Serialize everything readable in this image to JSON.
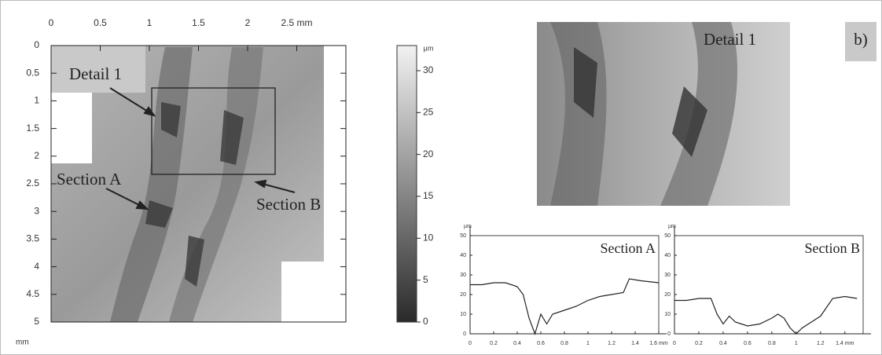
{
  "chart_data": [
    {
      "type": "heightmap",
      "xlim": [
        0,
        3
      ],
      "ylim": [
        0,
        5
      ],
      "xticks": [
        0,
        0.5,
        1,
        1.5,
        2,
        {
          "value": 2.5,
          "label": "2.5 mm"
        }
      ],
      "yticks": [
        0,
        0.5,
        1,
        1.5,
        2,
        2.5,
        3,
        3.5,
        4,
        4.5,
        5
      ],
      "ylabel": "mm",
      "clabel": "µm",
      "clim": [
        0,
        33
      ],
      "cticks": [
        0,
        5,
        10,
        15,
        20,
        25,
        30
      ],
      "annotations": [
        "Detail 1",
        "Section A",
        "Section B"
      ],
      "detail_title": "Detail 1",
      "panel_label": "b)"
    },
    {
      "type": "line",
      "title": "Section A",
      "ylabel": "µm",
      "color": "#222",
      "x": [
        0,
        0.1,
        0.2,
        0.3,
        0.4,
        0.45,
        0.5,
        0.55,
        0.6,
        0.65,
        0.7,
        0.8,
        0.9,
        1.0,
        1.1,
        1.2,
        1.3,
        1.35,
        1.45,
        1.6
      ],
      "values": [
        25,
        25,
        26,
        26,
        24,
        20,
        8,
        0,
        10,
        5,
        10,
        12,
        14,
        17,
        19,
        20,
        21,
        28,
        27,
        26
      ],
      "xlim": [
        0,
        1.6
      ],
      "ylim": [
        0,
        50
      ],
      "xticks": [
        0,
        0.2,
        0.4,
        0.6,
        0.8,
        1,
        1.2,
        1.4,
        {
          "value": 1.6,
          "label": "1.6 mm"
        }
      ],
      "yticks": [
        0,
        10,
        20,
        30,
        40,
        50
      ]
    },
    {
      "type": "line",
      "title": "Section B",
      "ylabel": "µm",
      "color": "#222",
      "x": [
        0,
        0.1,
        0.2,
        0.3,
        0.35,
        0.4,
        0.45,
        0.5,
        0.6,
        0.7,
        0.8,
        0.85,
        0.9,
        0.95,
        1.0,
        1.05,
        1.1,
        1.2,
        1.3,
        1.4,
        1.5
      ],
      "values": [
        17,
        17,
        18,
        18,
        10,
        5,
        9,
        6,
        4,
        5,
        8,
        10,
        8,
        3,
        0,
        3,
        5,
        9,
        18,
        19,
        18
      ],
      "xlim": [
        0,
        1.55
      ],
      "ylim": [
        0,
        50
      ],
      "xticks": [
        0,
        0.2,
        0.4,
        0.6,
        0.8,
        1,
        1.2,
        {
          "value": 1.4,
          "label": "1.4 mm"
        }
      ],
      "yticks": [
        0,
        10,
        20,
        30,
        40,
        50
      ]
    }
  ]
}
